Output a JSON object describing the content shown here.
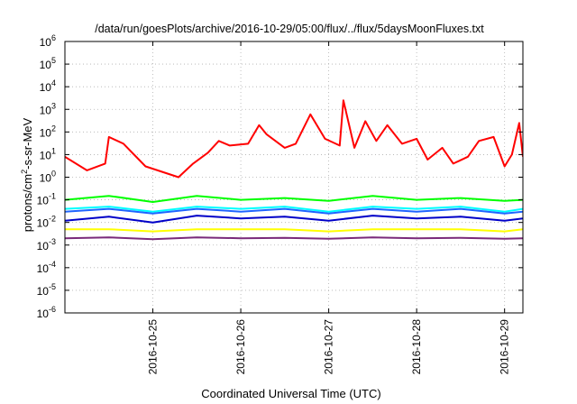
{
  "chart_data": {
    "type": "line",
    "title": "/data/run/goesPlots/archive/2016-10-29/05:00/flux/../flux/5daysMoonFluxes.txt",
    "xlabel": "Coordinated Universal Time (UTC)",
    "ylabel": {
      "prefix": "protons/cm",
      "sup": "2",
      "suffix": "-s-sr-MeV"
    },
    "y_scale": "log",
    "ylim": [
      1e-06,
      1000000.0
    ],
    "y_ticks": [
      {
        "value": 1e-06,
        "base": "10",
        "exp": "-6"
      },
      {
        "value": 1e-05,
        "base": "10",
        "exp": "-5"
      },
      {
        "value": 0.0001,
        "base": "10",
        "exp": "-4"
      },
      {
        "value": 0.001,
        "base": "10",
        "exp": "-3"
      },
      {
        "value": 0.01,
        "base": "10",
        "exp": "-2"
      },
      {
        "value": 0.1,
        "base": "10",
        "exp": "-1"
      },
      {
        "value": 1,
        "base": "10",
        "exp": "0"
      },
      {
        "value": 10,
        "base": "10",
        "exp": "1"
      },
      {
        "value": 100,
        "base": "10",
        "exp": "2"
      },
      {
        "value": 1000,
        "base": "10",
        "exp": "3"
      },
      {
        "value": 10000,
        "base": "10",
        "exp": "4"
      },
      {
        "value": 100000,
        "base": "10",
        "exp": "5"
      },
      {
        "value": 1000000,
        "base": "10",
        "exp": "6"
      }
    ],
    "xlim": [
      "2016-10-24T00:00",
      "2016-10-29T05:00"
    ],
    "x_ticks": [
      "2016-10-25",
      "2016-10-26",
      "2016-10-27",
      "2016-10-28",
      "2016-10-29"
    ],
    "grid": true,
    "legend": "none",
    "series": [
      {
        "color": "#ff0000",
        "x": [
          "2016-10-24T00:00",
          "2016-10-24T06:00",
          "2016-10-24T11:00",
          "2016-10-24T12:00",
          "2016-10-24T16:00",
          "2016-10-24T22:00",
          "2016-10-25T07:00",
          "2016-10-25T11:00",
          "2016-10-25T15:00",
          "2016-10-25T18:00",
          "2016-10-25T21:00",
          "2016-10-26T02:00",
          "2016-10-26T05:00",
          "2016-10-26T07:00",
          "2016-10-26T12:00",
          "2016-10-26T15:00",
          "2016-10-26T19:00",
          "2016-10-26T23:00",
          "2016-10-27T03:00",
          "2016-10-27T04:00",
          "2016-10-27T07:00",
          "2016-10-27T10:00",
          "2016-10-27T13:00",
          "2016-10-27T16:00",
          "2016-10-27T20:00",
          "2016-10-28T00:00",
          "2016-10-28T03:00",
          "2016-10-28T07:00",
          "2016-10-28T10:00",
          "2016-10-28T14:00",
          "2016-10-28T17:00",
          "2016-10-28T21:00",
          "2016-10-29T00:00",
          "2016-10-29T02:00",
          "2016-10-29T04:00",
          "2016-10-29T05:00"
        ],
        "values": [
          8,
          2,
          4,
          60,
          30,
          3,
          1,
          4,
          12,
          40,
          25,
          30,
          200,
          80,
          20,
          30,
          600,
          50,
          25,
          2500,
          20,
          300,
          40,
          200,
          30,
          50,
          6,
          20,
          4,
          8,
          40,
          60,
          3,
          10,
          250,
          8
        ]
      },
      {
        "color": "#00ff00",
        "x": [
          "2016-10-24T00:00",
          "2016-10-24T12:00",
          "2016-10-25T00:00",
          "2016-10-25T12:00",
          "2016-10-26T00:00",
          "2016-10-26T12:00",
          "2016-10-27T00:00",
          "2016-10-27T12:00",
          "2016-10-28T00:00",
          "2016-10-28T12:00",
          "2016-10-29T00:00",
          "2016-10-29T05:00"
        ],
        "values": [
          0.1,
          0.15,
          0.08,
          0.15,
          0.1,
          0.12,
          0.09,
          0.15,
          0.1,
          0.12,
          0.09,
          0.1
        ]
      },
      {
        "color": "#00ffff",
        "x": [
          "2016-10-24T00:00",
          "2016-10-24T12:00",
          "2016-10-25T00:00",
          "2016-10-25T12:00",
          "2016-10-26T00:00",
          "2016-10-26T12:00",
          "2016-10-27T00:00",
          "2016-10-27T12:00",
          "2016-10-28T00:00",
          "2016-10-28T12:00",
          "2016-10-29T00:00",
          "2016-10-29T05:00"
        ],
        "values": [
          0.04,
          0.05,
          0.03,
          0.05,
          0.04,
          0.05,
          0.03,
          0.05,
          0.04,
          0.05,
          0.03,
          0.04
        ]
      },
      {
        "color": "#1e64ff",
        "x": [
          "2016-10-24T00:00",
          "2016-10-24T12:00",
          "2016-10-25T00:00",
          "2016-10-25T12:00",
          "2016-10-26T00:00",
          "2016-10-26T12:00",
          "2016-10-27T00:00",
          "2016-10-27T12:00",
          "2016-10-28T00:00",
          "2016-10-28T12:00",
          "2016-10-29T00:00",
          "2016-10-29T05:00"
        ],
        "values": [
          0.03,
          0.04,
          0.025,
          0.04,
          0.03,
          0.04,
          0.025,
          0.04,
          0.03,
          0.04,
          0.025,
          0.03
        ]
      },
      {
        "color": "#0000c8",
        "x": [
          "2016-10-24T00:00",
          "2016-10-24T12:00",
          "2016-10-25T00:00",
          "2016-10-25T12:00",
          "2016-10-26T00:00",
          "2016-10-26T12:00",
          "2016-10-27T00:00",
          "2016-10-27T12:00",
          "2016-10-28T00:00",
          "2016-10-28T12:00",
          "2016-10-29T00:00",
          "2016-10-29T05:00"
        ],
        "values": [
          0.012,
          0.018,
          0.01,
          0.02,
          0.015,
          0.018,
          0.012,
          0.02,
          0.015,
          0.018,
          0.012,
          0.015
        ]
      },
      {
        "color": "#ffff00",
        "x": [
          "2016-10-24T00:00",
          "2016-10-24T12:00",
          "2016-10-25T00:00",
          "2016-10-25T12:00",
          "2016-10-26T00:00",
          "2016-10-26T12:00",
          "2016-10-27T00:00",
          "2016-10-27T12:00",
          "2016-10-28T00:00",
          "2016-10-28T12:00",
          "2016-10-29T00:00",
          "2016-10-29T05:00"
        ],
        "values": [
          0.005,
          0.005,
          0.004,
          0.005,
          0.005,
          0.005,
          0.004,
          0.005,
          0.005,
          0.005,
          0.004,
          0.005
        ]
      },
      {
        "color": "#7a2a7a",
        "x": [
          "2016-10-24T00:00",
          "2016-10-24T12:00",
          "2016-10-25T00:00",
          "2016-10-25T12:00",
          "2016-10-26T00:00",
          "2016-10-26T12:00",
          "2016-10-27T00:00",
          "2016-10-27T12:00",
          "2016-10-28T00:00",
          "2016-10-28T12:00",
          "2016-10-29T00:00",
          "2016-10-29T05:00"
        ],
        "values": [
          0.002,
          0.0022,
          0.0018,
          0.0022,
          0.002,
          0.0021,
          0.0019,
          0.0022,
          0.002,
          0.0021,
          0.0019,
          0.002
        ]
      }
    ]
  }
}
